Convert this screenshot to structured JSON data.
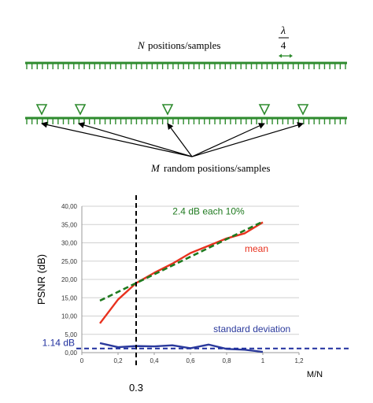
{
  "top_diagram": {
    "n_label_var": "N",
    "n_label_text": "positions/samples",
    "lambda_numerator": "λ",
    "lambda_denominator": "4",
    "m_label_var": "M",
    "m_label_text": "random positions/samples",
    "line_color": "#2e8b2e",
    "arrow_color": "#000000"
  },
  "chart_data": {
    "type": "line",
    "ylabel": "PSNR (dB)",
    "xlabel": "M/N",
    "xlim": [
      0,
      1.2
    ],
    "ylim": [
      0,
      40
    ],
    "x_ticks": [
      "0",
      "0,2",
      "0,4",
      "0,6",
      "0,8",
      "1",
      "1,2"
    ],
    "x_tick_values": [
      0,
      0.2,
      0.4,
      0.6,
      0.8,
      1.0,
      1.2
    ],
    "y_ticks": [
      "0,00",
      "5,00",
      "10,00",
      "15,00",
      "20,00",
      "25,00",
      "30,00",
      "35,00",
      "40,00"
    ],
    "y_tick_values": [
      0,
      5,
      10,
      15,
      20,
      25,
      30,
      35,
      40
    ],
    "grid": "horizontal",
    "series": [
      {
        "name": "mean",
        "color": "#e8311e",
        "x": [
          0.1,
          0.2,
          0.3,
          0.4,
          0.5,
          0.6,
          0.7,
          0.8,
          0.9,
          1.0
        ],
        "y": [
          8.0,
          14.5,
          19.0,
          21.8,
          24.3,
          27.2,
          29.2,
          31.2,
          32.6,
          35.6
        ]
      },
      {
        "name": "standard deviation",
        "color": "#2b3a9c",
        "x": [
          0.1,
          0.2,
          0.3,
          0.4,
          0.5,
          0.6,
          0.7,
          0.8,
          0.9,
          1.0
        ],
        "y": [
          2.6,
          1.5,
          1.8,
          1.7,
          2.0,
          1.2,
          2.2,
          1.0,
          0.8,
          0.2
        ]
      }
    ],
    "trend_line": {
      "label": "2.4 dB each 10%",
      "color": "#1f7a1f",
      "x": [
        0.1,
        1.0
      ],
      "y": [
        14.2,
        35.8
      ]
    },
    "vline": {
      "x": 0.3,
      "label": "0.3",
      "color": "#000000"
    },
    "hline": {
      "y": 1.14,
      "label": "1.14 dB",
      "color": "#1f2f9e"
    }
  }
}
